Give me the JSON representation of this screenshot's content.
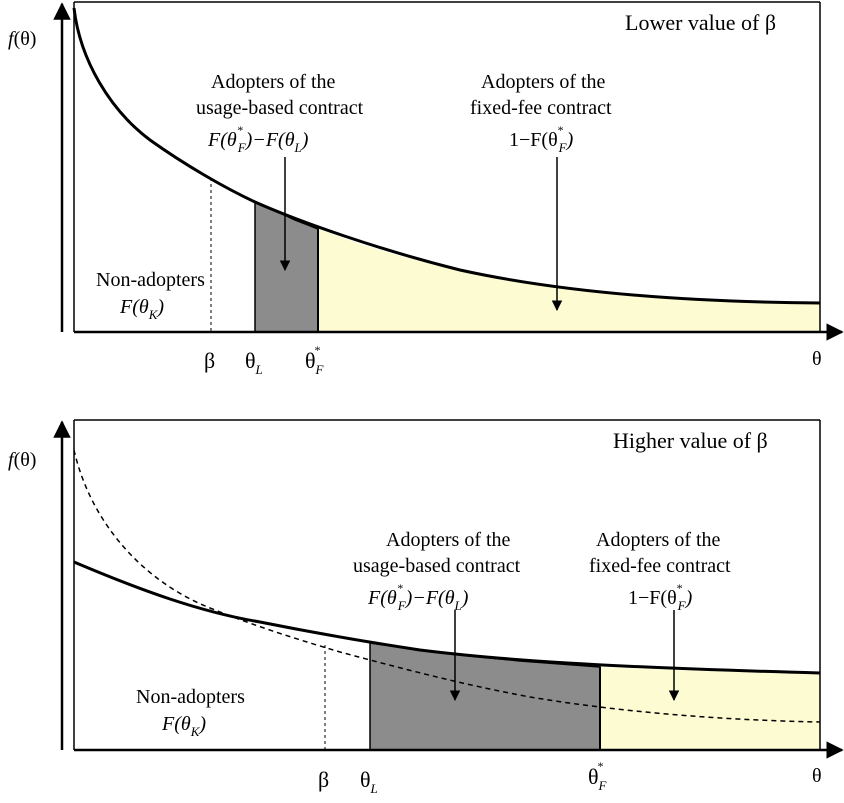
{
  "colors": {
    "usage_fill": "#8c8c8c",
    "fixed_fill": "#fdfbd2",
    "stroke": "#000000"
  },
  "top_panel": {
    "title": "Lower value of β",
    "y_axis_label": "f(θ)",
    "x_axis_label": "θ",
    "tick_beta": "β",
    "tick_theta_l": "θ",
    "tick_theta_l_sub": "L",
    "tick_theta_f": "θ",
    "tick_theta_f_sup": "*",
    "tick_theta_f_sub": "F",
    "non_adopters": {
      "line1": "Non-adopters",
      "line2": "F(θ",
      "sub": "K",
      "close": ")"
    },
    "usage": {
      "line1": "Adopters of the",
      "line2": "usage-based contract",
      "f1": "F(θ",
      "sup": "*",
      "sub1": "F",
      "mid": ")−F(θ",
      "sub2": "L",
      "close": ")"
    },
    "fixed": {
      "line1": "Adopters of the",
      "line2": "fixed-fee contract",
      "f1": "1−F(θ",
      "sup": "*",
      "sub": "F",
      "close": ")"
    }
  },
  "bottom_panel": {
    "title": "Higher value of β",
    "y_axis_label": "f(θ)",
    "x_axis_label": "θ",
    "tick_beta": "β",
    "tick_theta_l": "θ",
    "tick_theta_l_sub": "L",
    "tick_theta_f": "θ",
    "tick_theta_f_sup": "*",
    "tick_theta_f_sub": "F",
    "non_adopters": {
      "line1": "Non-adopters",
      "line2": "F(θ",
      "sub": "K",
      "close": ")"
    },
    "usage": {
      "line1": "Adopters of the",
      "line2": "usage-based contract",
      "f1": "F(θ",
      "sup": "*",
      "sub1": "F",
      "mid": ")−F(θ",
      "sub2": "L",
      "close": ")"
    },
    "fixed": {
      "line1": "Adopters of the",
      "line2": "fixed-fee contract",
      "f1": "1−F(θ",
      "sup": "*",
      "sub": "F",
      "close": ")"
    }
  }
}
